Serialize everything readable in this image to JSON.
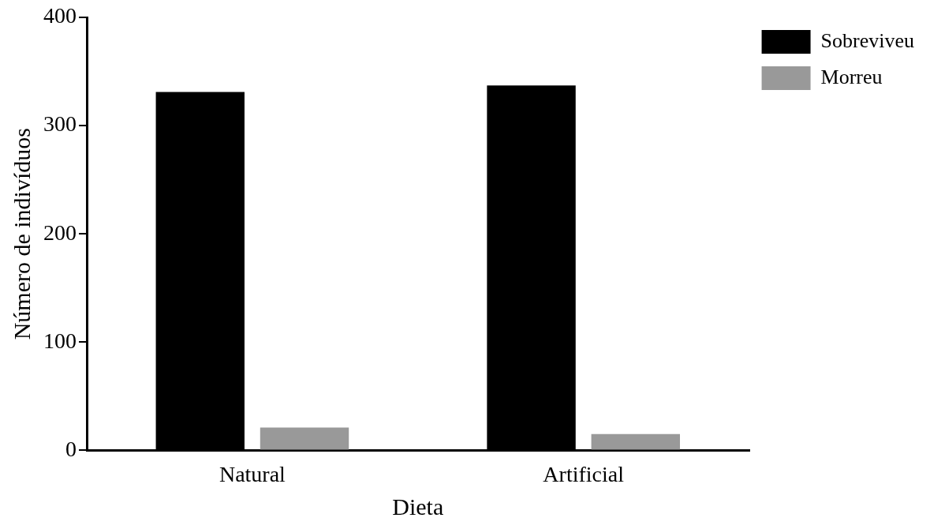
{
  "chart_data": {
    "type": "bar",
    "xlabel": "Dieta",
    "ylabel": "Número de indivíduos",
    "categories": [
      "Natural",
      "Artificial"
    ],
    "series": [
      {
        "name": "Sobreviveu",
        "color": "#000000",
        "values": [
          331,
          337
        ]
      },
      {
        "name": "Morreu",
        "color": "#999999",
        "values": [
          21,
          15
        ]
      }
    ],
    "ylim": [
      0,
      400
    ],
    "yticks": [
      0,
      100,
      200,
      300,
      400
    ],
    "grid": false,
    "legend": "top right"
  }
}
